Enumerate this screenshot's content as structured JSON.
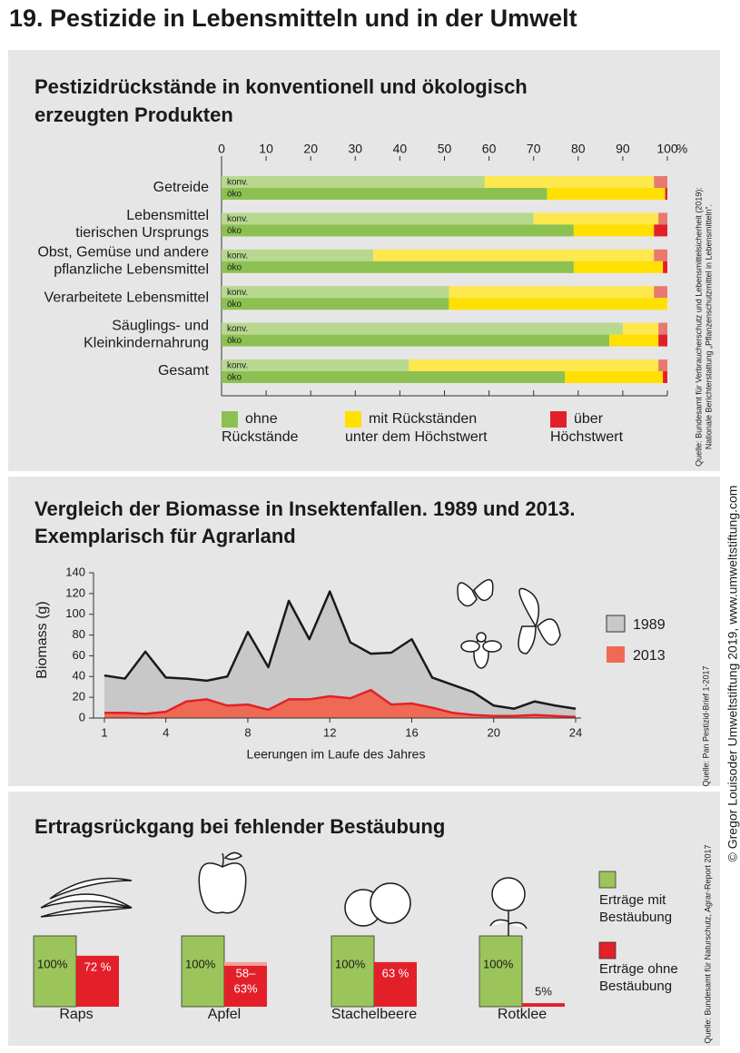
{
  "title": "19. Pestizide in Lebensmitteln und in der Umwelt",
  "copyright": "© Gregor Louisoder Umweltstiftung 2019, www.umweltstiftung.com",
  "chart_data": [
    {
      "type": "stacked_bar_h",
      "title": [
        "Pestizidrückstände in konventionell und ökologisch",
        "erzeugten Produkten"
      ],
      "categories": [
        [
          "Getreide"
        ],
        [
          "Lebensmittel",
          "tierischen Ursprungs"
        ],
        [
          "Obst, Gemüse und andere",
          "pflanzliche Lebensmittel"
        ],
        [
          "Verarbeitete Lebensmittel"
        ],
        [
          "Säuglings- und",
          "Kleinkindernahrung"
        ],
        [
          "Gesamt"
        ]
      ],
      "bar_labels": [
        "konv.",
        "öko"
      ],
      "xlim": [
        0,
        100
      ],
      "xticks": [
        0,
        10,
        20,
        30,
        40,
        50,
        60,
        70,
        80,
        90,
        100
      ],
      "x_unit": "%",
      "series": [
        {
          "name": [
            "ohne",
            "Rückstände"
          ],
          "color": "#8cc152",
          "colors": [
            "#b8d88f",
            "#8cc152"
          ],
          "values": [
            [
              59,
              73
            ],
            [
              70,
              79
            ],
            [
              34,
              79
            ],
            [
              51,
              51
            ],
            [
              90,
              87
            ],
            [
              42,
              77
            ]
          ]
        },
        {
          "name": [
            "mit Rückständen",
            "unter dem Höchstwert"
          ],
          "color": "#ffe000",
          "colors": [
            "#fde84e",
            "#ffe000"
          ],
          "values": [
            [
              38,
              26.5
            ],
            [
              28,
              18
            ],
            [
              63,
              20
            ],
            [
              46,
              49
            ],
            [
              8,
              11
            ],
            [
              56,
              22
            ]
          ]
        },
        {
          "name": [
            "über",
            "Höchstwert"
          ],
          "color": "#e3202a",
          "colors": [
            "#e9786e",
            "#e3202a"
          ],
          "values": [
            [
              3,
              0.5
            ],
            [
              2,
              3
            ],
            [
              3,
              1
            ],
            [
              3,
              0
            ],
            [
              2,
              2
            ],
            [
              2,
              1
            ]
          ]
        }
      ],
      "source": [
        "Quelle: Bundesamt für Verbraucherschutz und Lebensmittelsicherheit (2019):",
        "Nationale Berichterstattung „Pflanzenschutzmittel in Lebensmitteln“."
      ]
    },
    {
      "type": "area",
      "title": [
        "Vergleich der Biomasse in Insektenfallen. 1989 und 2013.",
        "Exemplarisch für Agrarland"
      ],
      "xlabel": "Leerungen im Laufe des Jahres",
      "ylabel": "Biomass (g)",
      "x": [
        1,
        2,
        3,
        4,
        5,
        6,
        7,
        8,
        9,
        10,
        11,
        12,
        13,
        14,
        15,
        16,
        17,
        18,
        19,
        20,
        21,
        22,
        23,
        24
      ],
      "xlim": [
        1,
        24
      ],
      "xticks": [
        1,
        4,
        8,
        12,
        16,
        20,
        24
      ],
      "ylim": [
        0,
        140
      ],
      "yticks": [
        0,
        20,
        40,
        60,
        80,
        100,
        120,
        140
      ],
      "series": [
        {
          "name": "1989",
          "color": "#c8c8c8",
          "line_color": "#1a1a1a",
          "values": [
            41,
            38,
            64,
            39,
            38,
            36,
            40,
            83,
            49,
            113,
            76,
            122,
            73,
            62,
            63,
            76,
            39,
            32,
            25,
            12,
            9,
            16,
            12,
            9
          ]
        },
        {
          "name": "2013",
          "color": "#ef6a55",
          "line_color": "#e3202a",
          "values": [
            5,
            5,
            4,
            6,
            16,
            18,
            12,
            13,
            8,
            18,
            18,
            21,
            19,
            27,
            13,
            14,
            10,
            5,
            3,
            2,
            2,
            3,
            2,
            1
          ]
        }
      ],
      "source": [
        "Quelle: Pan Pestizid-Brief 1-2017"
      ]
    },
    {
      "type": "pollination",
      "title": [
        "Ertragsrückgang bei fehlender Bestäubung"
      ],
      "categories": [
        "Raps",
        "Apfel",
        "Stachelbeere",
        "Rotklee"
      ],
      "series": [
        {
          "name": [
            "Erträge mit",
            "Bestäubung"
          ],
          "color": "#9bc45a",
          "values": [
            100,
            100,
            100,
            100
          ],
          "value_labels": [
            [
              "100%"
            ],
            [
              "100%"
            ],
            [
              "100%"
            ],
            [
              "100%"
            ]
          ]
        },
        {
          "name": [
            "Erträge ohne",
            "Bestäubung"
          ],
          "color": "#e3202a",
          "range_color": "#f2a198",
          "values": [
            72,
            [
              58,
              63
            ],
            63,
            5
          ],
          "value_labels": [
            [
              "72 %"
            ],
            [
              "58–",
              "63%"
            ],
            [
              "63 %"
            ],
            [
              "5%"
            ]
          ]
        }
      ],
      "source": [
        "Quelle: Bundesamt für Naturschutz, Agrar-Report 2017"
      ]
    }
  ]
}
